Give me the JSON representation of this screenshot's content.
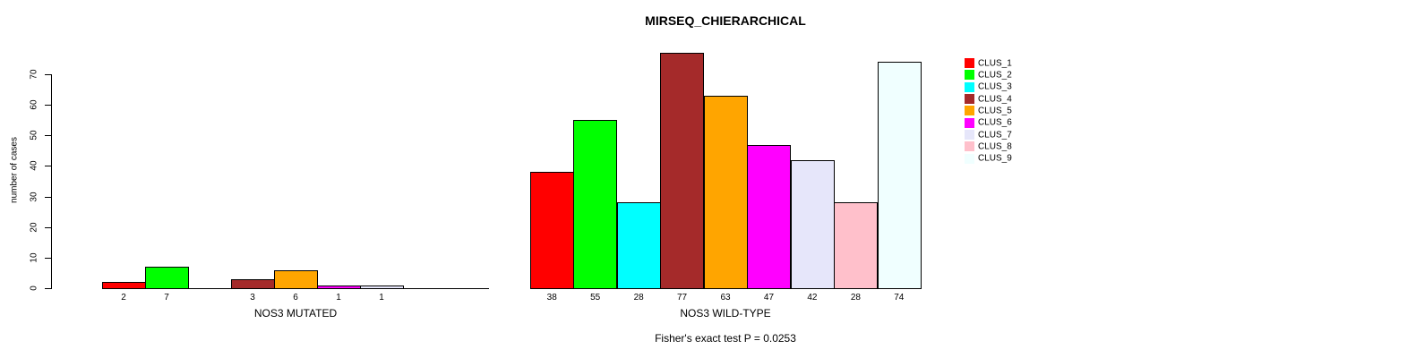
{
  "chart_data": {
    "type": "bar",
    "title": "MIRSEQ_CHIERARCHICAL",
    "ylabel": "number of cases",
    "xlabel": "",
    "ylim": [
      0,
      77
    ],
    "yticks": [
      0,
      10,
      20,
      30,
      40,
      50,
      60,
      70
    ],
    "grid": false,
    "legend_position": "right",
    "bar_value_labels_shown": true,
    "categories": [
      "CLUS_1",
      "CLUS_2",
      "CLUS_3",
      "CLUS_4",
      "CLUS_5",
      "CLUS_6",
      "CLUS_7",
      "CLUS_8",
      "CLUS_9"
    ],
    "colors": [
      "#FF0000",
      "#00FF00",
      "#00FFFF",
      "#A52A2A",
      "#FFA500",
      "#FF00FF",
      "#E6E6FA",
      "#FFC0CB",
      "#F0FFFF"
    ],
    "series": [
      {
        "name": "NOS3 MUTATED",
        "values": [
          2,
          7,
          0,
          3,
          6,
          1,
          1,
          0,
          0
        ]
      },
      {
        "name": "NOS3 WILD-TYPE",
        "values": [
          38,
          55,
          28,
          77,
          63,
          47,
          42,
          28,
          74
        ]
      }
    ],
    "annotation": "Fisher's exact test P = 0.0253",
    "axis_color": "#000000",
    "background_color": "#FFFFFF"
  }
}
